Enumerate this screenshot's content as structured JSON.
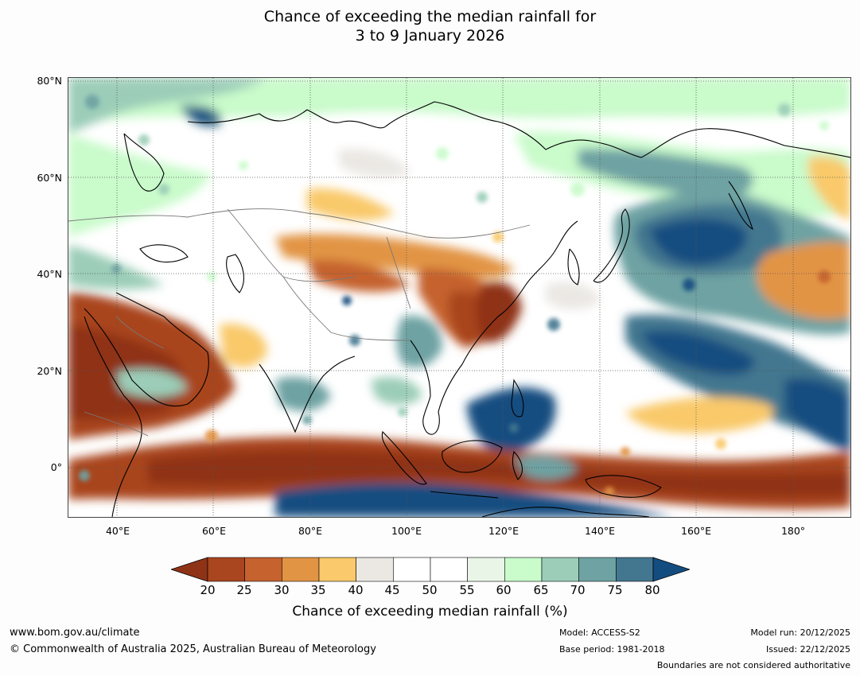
{
  "title": {
    "line1": "Chance of exceeding the median rainfall for",
    "line2": "3 to 9 January 2026"
  },
  "map": {
    "lat_labels": [
      "80°N",
      "60°N",
      "40°N",
      "20°N",
      "0°"
    ],
    "lon_labels": [
      "40°E",
      "60°E",
      "80°E",
      "100°E",
      "120°E",
      "140°E",
      "160°E",
      "180°"
    ],
    "extent": {
      "lon_min": 30,
      "lon_max": 192,
      "lat_min": -10,
      "lat_max": 80
    }
  },
  "colorbar": {
    "ticks": [
      "20",
      "25",
      "30",
      "35",
      "40",
      "45",
      "50",
      "55",
      "60",
      "65",
      "70",
      "75",
      "80"
    ],
    "colors": [
      "#8f3317",
      "#a9451f",
      "#c5622e",
      "#e29445",
      "#f9c96b",
      "#ebe8e4",
      "#ffffff",
      "#ffffff",
      "#e9f6e7",
      "#c9fbcb",
      "#9bcdb8",
      "#6ea2a3",
      "#43778f",
      "#134d80"
    ],
    "label": "Chance of exceeding median rainfall (%)"
  },
  "footer": {
    "url": "www.bom.gov.au/climate",
    "copyright": "© Commonwealth of Australia 2025, Australian Bureau of Meteorology",
    "model": "Model: ACCESS-S2",
    "base_period": "Base period: 1981-2018",
    "model_run": "Model run: 20/12/2025",
    "issued": "Issued: 22/12/2025",
    "boundaries": "Boundaries are not considered authoritative"
  }
}
